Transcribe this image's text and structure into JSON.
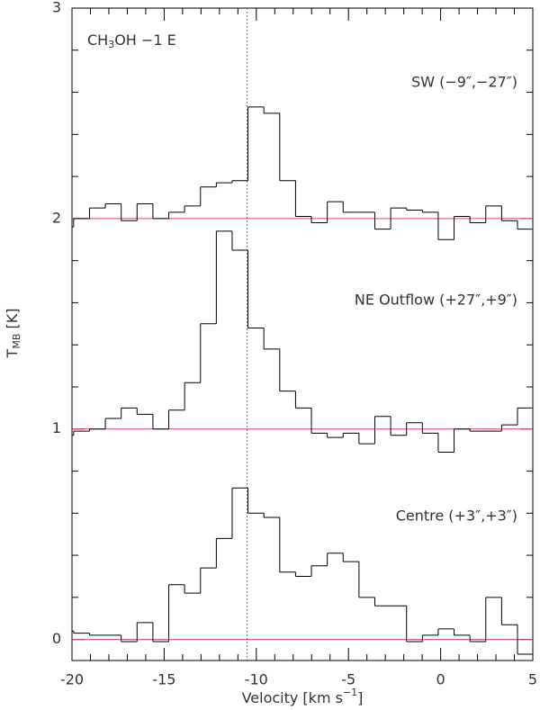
{
  "chart_data": {
    "type": "step",
    "title_parts": [
      "CH",
      "3",
      "OH −1 E"
    ],
    "xlabel_parts": [
      "Velocity [km s",
      "−1",
      "]"
    ],
    "ylabel_parts": [
      "T",
      "MB",
      " [K]"
    ],
    "x": [
      -20.34,
      -19.48,
      -18.62,
      -17.76,
      -16.9,
      -16.04,
      -15.18,
      -14.32,
      -13.46,
      -12.6,
      -11.74,
      -10.88,
      -10.02,
      -9.16,
      -8.3,
      -7.44,
      -6.58,
      -5.72,
      -4.86,
      -4.0,
      -3.14,
      -2.28,
      -1.42,
      -0.56,
      0.3,
      1.16,
      2.02,
      2.88,
      3.74,
      4.6
    ],
    "series": [
      {
        "name": "SW (−9″,−27″)",
        "color": "#000000",
        "values": [
          1.96,
          2.0,
          2.05,
          2.07,
          1.99,
          2.07,
          2.0,
          2.03,
          2.06,
          2.15,
          2.17,
          2.18,
          2.53,
          2.5,
          2.18,
          2.01,
          1.98,
          2.08,
          2.03,
          2.03,
          1.95,
          2.05,
          2.04,
          2.03,
          1.9,
          2.01,
          1.98,
          2.06,
          1.99,
          1.95
        ]
      },
      {
        "name": "NE Outflow (+27″,+9″)",
        "color": "#000000",
        "values": [
          0.97,
          0.99,
          1.0,
          1.05,
          1.1,
          1.07,
          1.0,
          1.09,
          1.22,
          1.5,
          1.94,
          1.85,
          1.48,
          1.38,
          1.18,
          1.1,
          0.98,
          0.96,
          0.98,
          0.93,
          1.06,
          0.97,
          1.03,
          0.98,
          0.89,
          1.0,
          0.99,
          0.99,
          1.02,
          1.1
        ]
      },
      {
        "name": "Centre (+3″,+3″)",
        "color": "#000000",
        "values": [
          0.04,
          0.03,
          0.02,
          0.02,
          -0.01,
          0.08,
          -0.01,
          0.26,
          0.22,
          0.34,
          0.48,
          0.72,
          0.6,
          0.58,
          0.32,
          0.3,
          0.35,
          0.41,
          0.37,
          0.2,
          0.16,
          0.16,
          -0.01,
          0.02,
          0.05,
          0.02,
          -0.01,
          0.2,
          0.07,
          -0.07
        ]
      }
    ],
    "hlines": [
      0,
      1,
      2
    ],
    "hline_color": "#e0406a",
    "vlines": [
      -10.5
    ],
    "xlim": [
      -20,
      5
    ],
    "ylim": [
      -0.1,
      3
    ],
    "xticks": [
      -20,
      -15,
      -10,
      -5,
      0,
      5
    ],
    "yticks": [
      0,
      1,
      2,
      3
    ],
    "xminorticks": [
      -19,
      -18,
      -17,
      -16,
      -14,
      -13,
      -12,
      -11,
      -9,
      -8,
      -7,
      -6,
      -4,
      -3,
      -2,
      -1,
      1,
      2,
      3,
      4
    ],
    "yminorticks": [
      0.2,
      0.4,
      0.6,
      0.8,
      1.2,
      1.4,
      1.6,
      1.8,
      2.2,
      2.4,
      2.6,
      2.8
    ]
  }
}
